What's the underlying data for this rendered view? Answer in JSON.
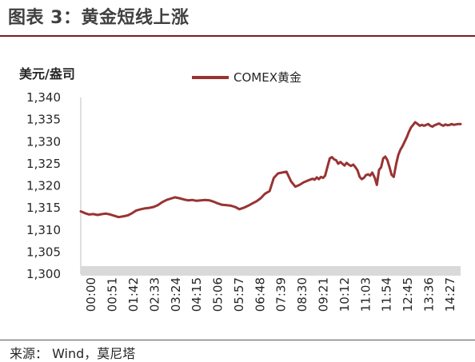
{
  "figure": {
    "title": "图表 3：黄金短线上涨",
    "source": "来源：  Wind，莫尼塔"
  },
  "colors": {
    "series": "#993333",
    "accent_rule": "#7a1f1f",
    "axis_band": "#d9d9d9"
  },
  "chart_data": {
    "type": "line",
    "title": "",
    "ylabel": "美元/盎司",
    "xlabel": "",
    "ylim": [
      1300,
      1340
    ],
    "yticks": [
      1300,
      1305,
      1310,
      1315,
      1320,
      1325,
      1330,
      1335,
      1340
    ],
    "ytick_labels": [
      "1,300",
      "1,305",
      "1,310",
      "1,315",
      "1,320",
      "1,325",
      "1,330",
      "1,335",
      "1,340"
    ],
    "xticks": [
      "00:00",
      "00:51",
      "01:42",
      "02:33",
      "03:24",
      "04:15",
      "05:06",
      "05:57",
      "06:48",
      "07:39",
      "08:30",
      "09:21",
      "10:12",
      "11:03",
      "11:54",
      "12:45",
      "13:36",
      "14:27"
    ],
    "grid": false,
    "legend": "top-center",
    "series": [
      {
        "name": "COMEX黄金",
        "x_minutes": [
          0,
          10,
          20,
          30,
          40,
          51,
          60,
          70,
          80,
          90,
          102,
          112,
          122,
          132,
          143,
          153,
          163,
          173,
          183,
          194,
          204,
          214,
          224,
          234,
          245,
          255,
          265,
          275,
          285,
          296,
          306,
          316,
          326,
          336,
          347,
          357,
          367,
          377,
          387,
          398,
          408,
          418,
          428,
          438,
          449,
          459,
          469,
          479,
          489,
          500,
          510,
          520,
          530,
          540,
          551,
          556,
          561,
          566,
          571,
          576,
          581,
          587,
          592,
          597,
          602,
          607,
          612,
          617,
          622,
          627,
          632,
          637,
          642,
          648,
          653,
          658,
          663,
          668,
          673,
          678,
          683,
          688,
          693,
          699,
          704,
          709,
          714,
          719,
          724,
          729,
          734,
          739,
          744,
          750,
          755,
          760,
          765,
          770,
          775,
          780,
          785,
          790,
          795,
          801,
          806,
          811,
          816,
          821,
          826,
          831,
          836,
          841,
          846,
          852,
          857,
          862,
          867,
          872,
          877,
          882,
          887,
          892,
          897,
          903
        ],
        "values": [
          1314.2,
          1313.8,
          1313.5,
          1313.6,
          1313.4,
          1313.6,
          1313.7,
          1313.5,
          1313.2,
          1312.9,
          1313.1,
          1313.3,
          1313.8,
          1314.4,
          1314.7,
          1314.9,
          1315.0,
          1315.2,
          1315.6,
          1316.3,
          1316.8,
          1317.1,
          1317.4,
          1317.2,
          1316.9,
          1316.7,
          1316.8,
          1316.6,
          1316.7,
          1316.8,
          1316.7,
          1316.4,
          1316.0,
          1315.7,
          1315.6,
          1315.5,
          1315.2,
          1314.7,
          1315.0,
          1315.5,
          1316.0,
          1316.5,
          1317.2,
          1318.2,
          1318.8,
          1321.8,
          1322.8,
          1323.0,
          1323.2,
          1321.0,
          1319.8,
          1320.2,
          1320.8,
          1321.2,
          1321.6,
          1321.4,
          1321.9,
          1321.5,
          1322.0,
          1321.8,
          1322.3,
          1324.5,
          1326.2,
          1326.5,
          1326.0,
          1325.8,
          1325.0,
          1325.4,
          1325.0,
          1324.6,
          1325.2,
          1324.8,
          1324.5,
          1324.8,
          1324.2,
          1323.5,
          1322.0,
          1321.5,
          1321.8,
          1322.4,
          1322.6,
          1322.3,
          1323.0,
          1321.8,
          1320.2,
          1323.6,
          1324.2,
          1326.2,
          1326.6,
          1325.8,
          1324.2,
          1322.5,
          1322.0,
          1325.0,
          1327.0,
          1328.2,
          1329.0,
          1330.0,
          1331.0,
          1332.2,
          1333.2,
          1333.8,
          1334.4,
          1334.0,
          1333.6,
          1333.8,
          1333.6,
          1333.8,
          1334.0,
          1333.6,
          1333.4,
          1333.7,
          1333.9,
          1334.1,
          1333.8,
          1333.6,
          1333.9,
          1333.7,
          1333.8,
          1334.0,
          1333.8,
          1333.9,
          1334.0,
          1334.0
        ]
      }
    ]
  }
}
